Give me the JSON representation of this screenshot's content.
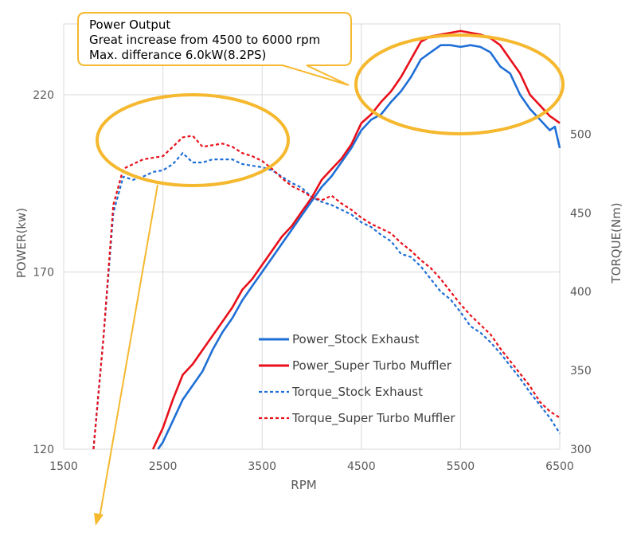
{
  "chart_data": {
    "type": "line",
    "x_axis": {
      "label": "RPM",
      "range": [
        1500,
        6500
      ],
      "ticks": [
        1500,
        2500,
        3500,
        4500,
        5500,
        6500
      ]
    },
    "y_axis_left": {
      "label": "POWER(kw)",
      "range": [
        120,
        240
      ],
      "ticks": [
        120,
        170,
        220
      ]
    },
    "y_axis_right": {
      "label": "TORQUE(Nm)",
      "range": [
        300,
        570
      ],
      "ticks": [
        300,
        350,
        400,
        450,
        500
      ]
    },
    "grid": true,
    "legend_position": "center-right",
    "series": [
      {
        "name": "Power_Stock Exhaust",
        "axis": "left",
        "style": "solid",
        "color": "#1f6fd6",
        "x": [
          2450,
          2500,
          2600,
          2700,
          2800,
          2900,
          3000,
          3100,
          3200,
          3300,
          3400,
          3500,
          3600,
          3700,
          3800,
          3900,
          4000,
          4100,
          4200,
          4300,
          4400,
          4500,
          4600,
          4700,
          4800,
          4900,
          5000,
          5100,
          5200,
          5300,
          5400,
          5500,
          5600,
          5700,
          5800,
          5900,
          6000,
          6100,
          6200,
          6300,
          6400,
          6450,
          6500
        ],
        "y": [
          120,
          122,
          128,
          134,
          138,
          142,
          148,
          153,
          157,
          162,
          166,
          170,
          174,
          178,
          182,
          186,
          190,
          194,
          197,
          201,
          205,
          210,
          213,
          214.5,
          218,
          221,
          225,
          230,
          232,
          234,
          234,
          233.5,
          234,
          233.5,
          232,
          228,
          226,
          220,
          216,
          213,
          210,
          211,
          205
        ]
      },
      {
        "name": "Power_Super Turbo Muffler",
        "axis": "left",
        "style": "solid",
        "color": "#e8101a",
        "x": [
          2400,
          2500,
          2600,
          2700,
          2800,
          2900,
          3000,
          3100,
          3200,
          3300,
          3400,
          3500,
          3600,
          3700,
          3800,
          3900,
          4000,
          4100,
          4200,
          4300,
          4400,
          4500,
          4600,
          4700,
          4800,
          4900,
          5000,
          5100,
          5200,
          5300,
          5400,
          5500,
          5600,
          5700,
          5800,
          5900,
          6000,
          6100,
          6200,
          6300,
          6400,
          6450,
          6500
        ],
        "y": [
          120,
          126,
          134,
          141,
          144,
          148,
          152,
          156,
          160,
          165,
          168,
          172,
          176,
          180,
          183,
          187,
          191,
          196,
          199,
          202,
          206,
          212,
          214.5,
          218,
          221,
          225,
          230,
          235,
          236.5,
          237,
          237.5,
          238,
          237.5,
          237,
          236,
          234,
          230,
          226,
          220,
          217,
          214,
          213,
          212
        ]
      },
      {
        "name": "Torque_Stock Exhaust",
        "axis": "right",
        "style": "dashed",
        "color": "#1f6fd6",
        "x": [
          1800,
          1900,
          2000,
          2100,
          2200,
          2300,
          2400,
          2500,
          2600,
          2700,
          2800,
          2900,
          3000,
          3100,
          3200,
          3300,
          3400,
          3500,
          3600,
          3700,
          3800,
          3900,
          4000,
          4100,
          4200,
          4300,
          4400,
          4500,
          4600,
          4700,
          4800,
          4900,
          5000,
          5100,
          5200,
          5300,
          5400,
          5500,
          5600,
          5700,
          5800,
          5900,
          6000,
          6100,
          6200,
          6300,
          6400,
          6500
        ],
        "y": [
          300,
          370,
          450,
          473,
          471,
          473,
          476,
          477,
          481,
          488,
          482,
          482,
          484,
          484,
          484,
          481,
          480,
          479,
          477,
          473,
          469,
          466,
          460,
          457,
          455,
          452,
          449,
          444,
          441,
          436,
          432,
          424,
          422,
          416,
          408,
          400,
          395,
          387,
          378,
          374,
          368,
          361,
          353,
          345,
          336,
          328,
          320,
          310
        ]
      },
      {
        "name": "Torque_Super Turbo Muffler",
        "axis": "right",
        "style": "dashed",
        "color": "#e8101a",
        "x": [
          1800,
          1900,
          2000,
          2100,
          2200,
          2300,
          2400,
          2500,
          2600,
          2700,
          2800,
          2900,
          3000,
          3100,
          3200,
          3300,
          3400,
          3500,
          3600,
          3700,
          3800,
          3900,
          4000,
          4100,
          4200,
          4300,
          4400,
          4500,
          4600,
          4700,
          4800,
          4900,
          5000,
          5100,
          5200,
          5300,
          5400,
          5500,
          5600,
          5700,
          5800,
          5900,
          6000,
          6100,
          6200,
          6300,
          6400,
          6500
        ],
        "y": [
          300,
          370,
          455,
          478,
          481,
          484,
          485,
          486,
          492,
          498,
          499,
          492,
          493,
          494,
          492,
          488,
          486,
          483,
          478,
          472,
          467,
          464,
          460,
          458,
          461,
          456,
          452,
          447,
          443,
          440,
          437,
          431,
          426,
          420,
          415,
          408,
          400,
          392,
          385,
          379,
          373,
          364,
          356,
          348,
          340,
          330,
          324,
          320
        ]
      }
    ],
    "annotations": [
      {
        "kind": "callout",
        "lines": [
          {
            "text": "Power Output",
            "color": "#000000"
          },
          {
            "text": "Great increase from 4500 to 6000 rpm",
            "color": "#000000"
          },
          {
            "text": "Max. differance 6.0kW(8.2PS)",
            "color": "#e8101a"
          }
        ]
      }
    ]
  }
}
